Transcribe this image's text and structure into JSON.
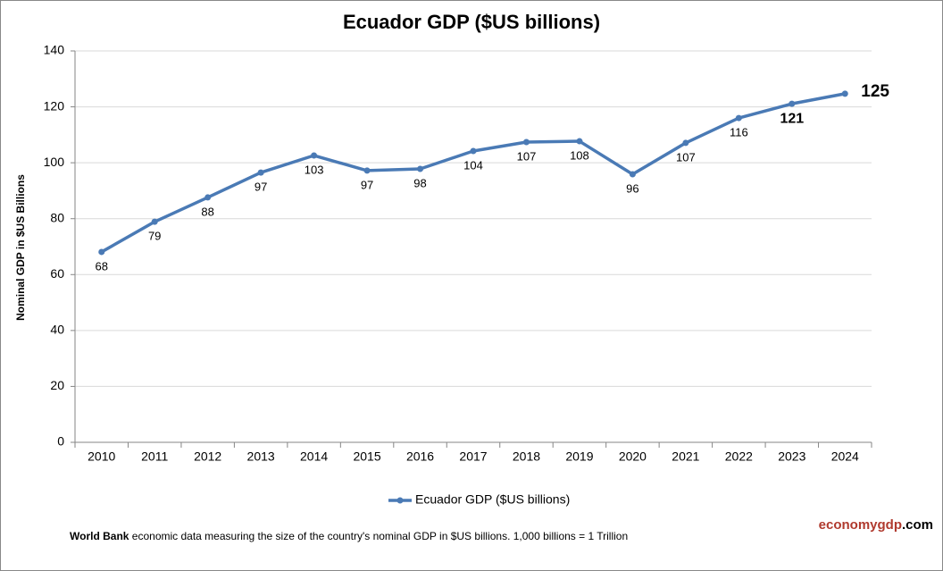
{
  "chart_data": {
    "type": "line",
    "title": "Ecuador GDP ($US billions)",
    "y_label": "Nominal GDP in $US Billions",
    "categories": [
      "2010",
      "2011",
      "2012",
      "2013",
      "2014",
      "2015",
      "2016",
      "2017",
      "2018",
      "2019",
      "2020",
      "2021",
      "2022",
      "2023",
      "2024"
    ],
    "series": [
      {
        "name": "Ecuador GDP ($US billions)",
        "color": "#4a7ab5",
        "values": [
          68.1,
          78.9,
          87.6,
          96.5,
          102.6,
          97.2,
          97.8,
          104.2,
          107.4,
          107.7,
          95.9,
          107.1,
          116.0,
          121.1,
          124.7
        ],
        "value_labels": [
          "68",
          "79",
          "88",
          "97",
          "103",
          "97",
          "98",
          "104",
          "107",
          "108",
          "96",
          "107",
          "116",
          "121",
          "125"
        ]
      }
    ],
    "ylim": [
      0,
      140
    ],
    "yticks": [
      0,
      20,
      40,
      60,
      80,
      100,
      120,
      140
    ],
    "grid": true,
    "legend": "bottom"
  },
  "footer": {
    "source": "World Bank",
    "text": "economic data  measuring the size of the country's nominal GDP in $US billions. 1,000 billions = 1 Trillion",
    "brand_main": "economygdp",
    "brand_suffix": ".com"
  }
}
